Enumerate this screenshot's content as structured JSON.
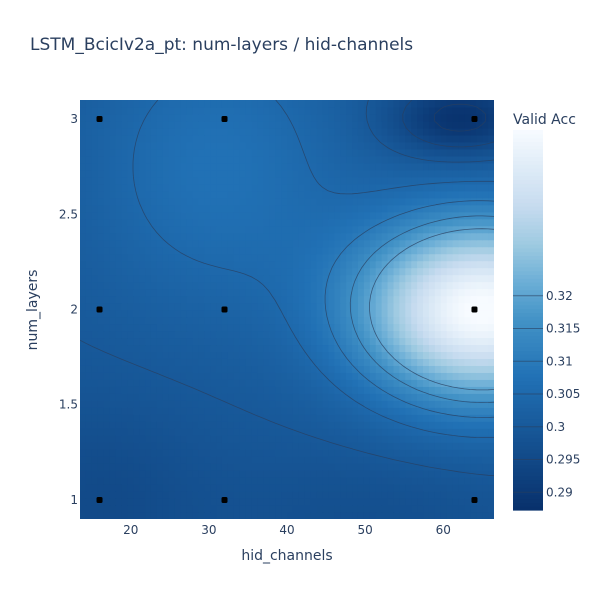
{
  "chart_data": {
    "type": "contour",
    "title": "LSTM_BcicIv2a_pt: num-layers / hid-channels",
    "xlabel": "hid_channels",
    "ylabel": "num_layers",
    "xlim": [
      13.5,
      66.5
    ],
    "ylim": [
      0.9,
      3.1
    ],
    "x_ticks": [
      20,
      30,
      40,
      50,
      60
    ],
    "y_ticks": [
      "1",
      "1.5",
      "2",
      "2.5",
      "3"
    ],
    "colorbar": {
      "title": "Valid Acc",
      "range": [
        0.2873,
        0.3453
      ],
      "ticks": [
        "0.29",
        "0.295",
        "0.3",
        "0.305",
        "0.31",
        "0.315",
        "0.32"
      ],
      "colorscale": "Blues"
    },
    "colors": {
      "low": "#08306b",
      "high": "#f7fbff",
      "contour_line": "#2a3f5f",
      "point": "#000000"
    },
    "contour_levels": [
      0.29,
      0.295,
      0.3,
      0.305,
      0.31,
      0.315,
      0.32
    ],
    "points": [
      {
        "x": 16,
        "y": 1
      },
      {
        "x": 16,
        "y": 2
      },
      {
        "x": 16,
        "y": 3
      },
      {
        "x": 32,
        "y": 1
      },
      {
        "x": 32,
        "y": 2
      },
      {
        "x": 32,
        "y": 3
      },
      {
        "x": 64,
        "y": 1
      },
      {
        "x": 64,
        "y": 2
      },
      {
        "x": 64,
        "y": 3
      }
    ]
  }
}
